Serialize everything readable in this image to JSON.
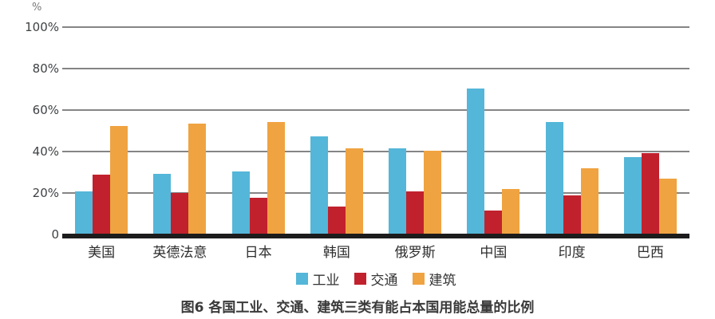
{
  "figure": {
    "caption": "图6 各国工业、交通、建筑三类有能占本国用能总量的比例",
    "y_axis_unit": "%"
  },
  "colors": {
    "industry": "#54b6d8",
    "transport": "#c1212d",
    "building": "#f0a341",
    "gridline": "#858585",
    "axis_line": "#1c1c1c",
    "tick_text": "#3f4245",
    "background": "#ffffff"
  },
  "chart_data": {
    "type": "bar",
    "title": "图6 各国工业、交通、建筑三类有能占本国用能总量的比例",
    "y_unit": "%",
    "ylim": [
      0,
      100
    ],
    "grid": true,
    "legend_position": "bottom",
    "yticks": [
      {
        "label": "100%",
        "value": 100
      },
      {
        "label": "80%",
        "value": 80
      },
      {
        "label": "60%",
        "value": 60
      },
      {
        "label": "40%",
        "value": 40
      },
      {
        "label": "20%",
        "value": 20
      },
      {
        "label": "0",
        "value": 0
      }
    ],
    "categories": [
      "美国",
      "英德法意",
      "日本",
      "韩国",
      "俄罗斯",
      "中国",
      "印度",
      "巴西"
    ],
    "series": [
      {
        "name": "工业",
        "color": "#54b6d8",
        "values": [
          20.5,
          29,
          30,
          47,
          41,
          70,
          54,
          37
        ]
      },
      {
        "name": "交通",
        "color": "#c1212d",
        "values": [
          28.5,
          19.5,
          17.5,
          13,
          20.5,
          11,
          18.5,
          39
        ]
      },
      {
        "name": "建筑",
        "color": "#f0a341",
        "values": [
          52,
          53,
          54,
          41,
          40,
          21.5,
          31.5,
          26.5
        ]
      }
    ]
  }
}
